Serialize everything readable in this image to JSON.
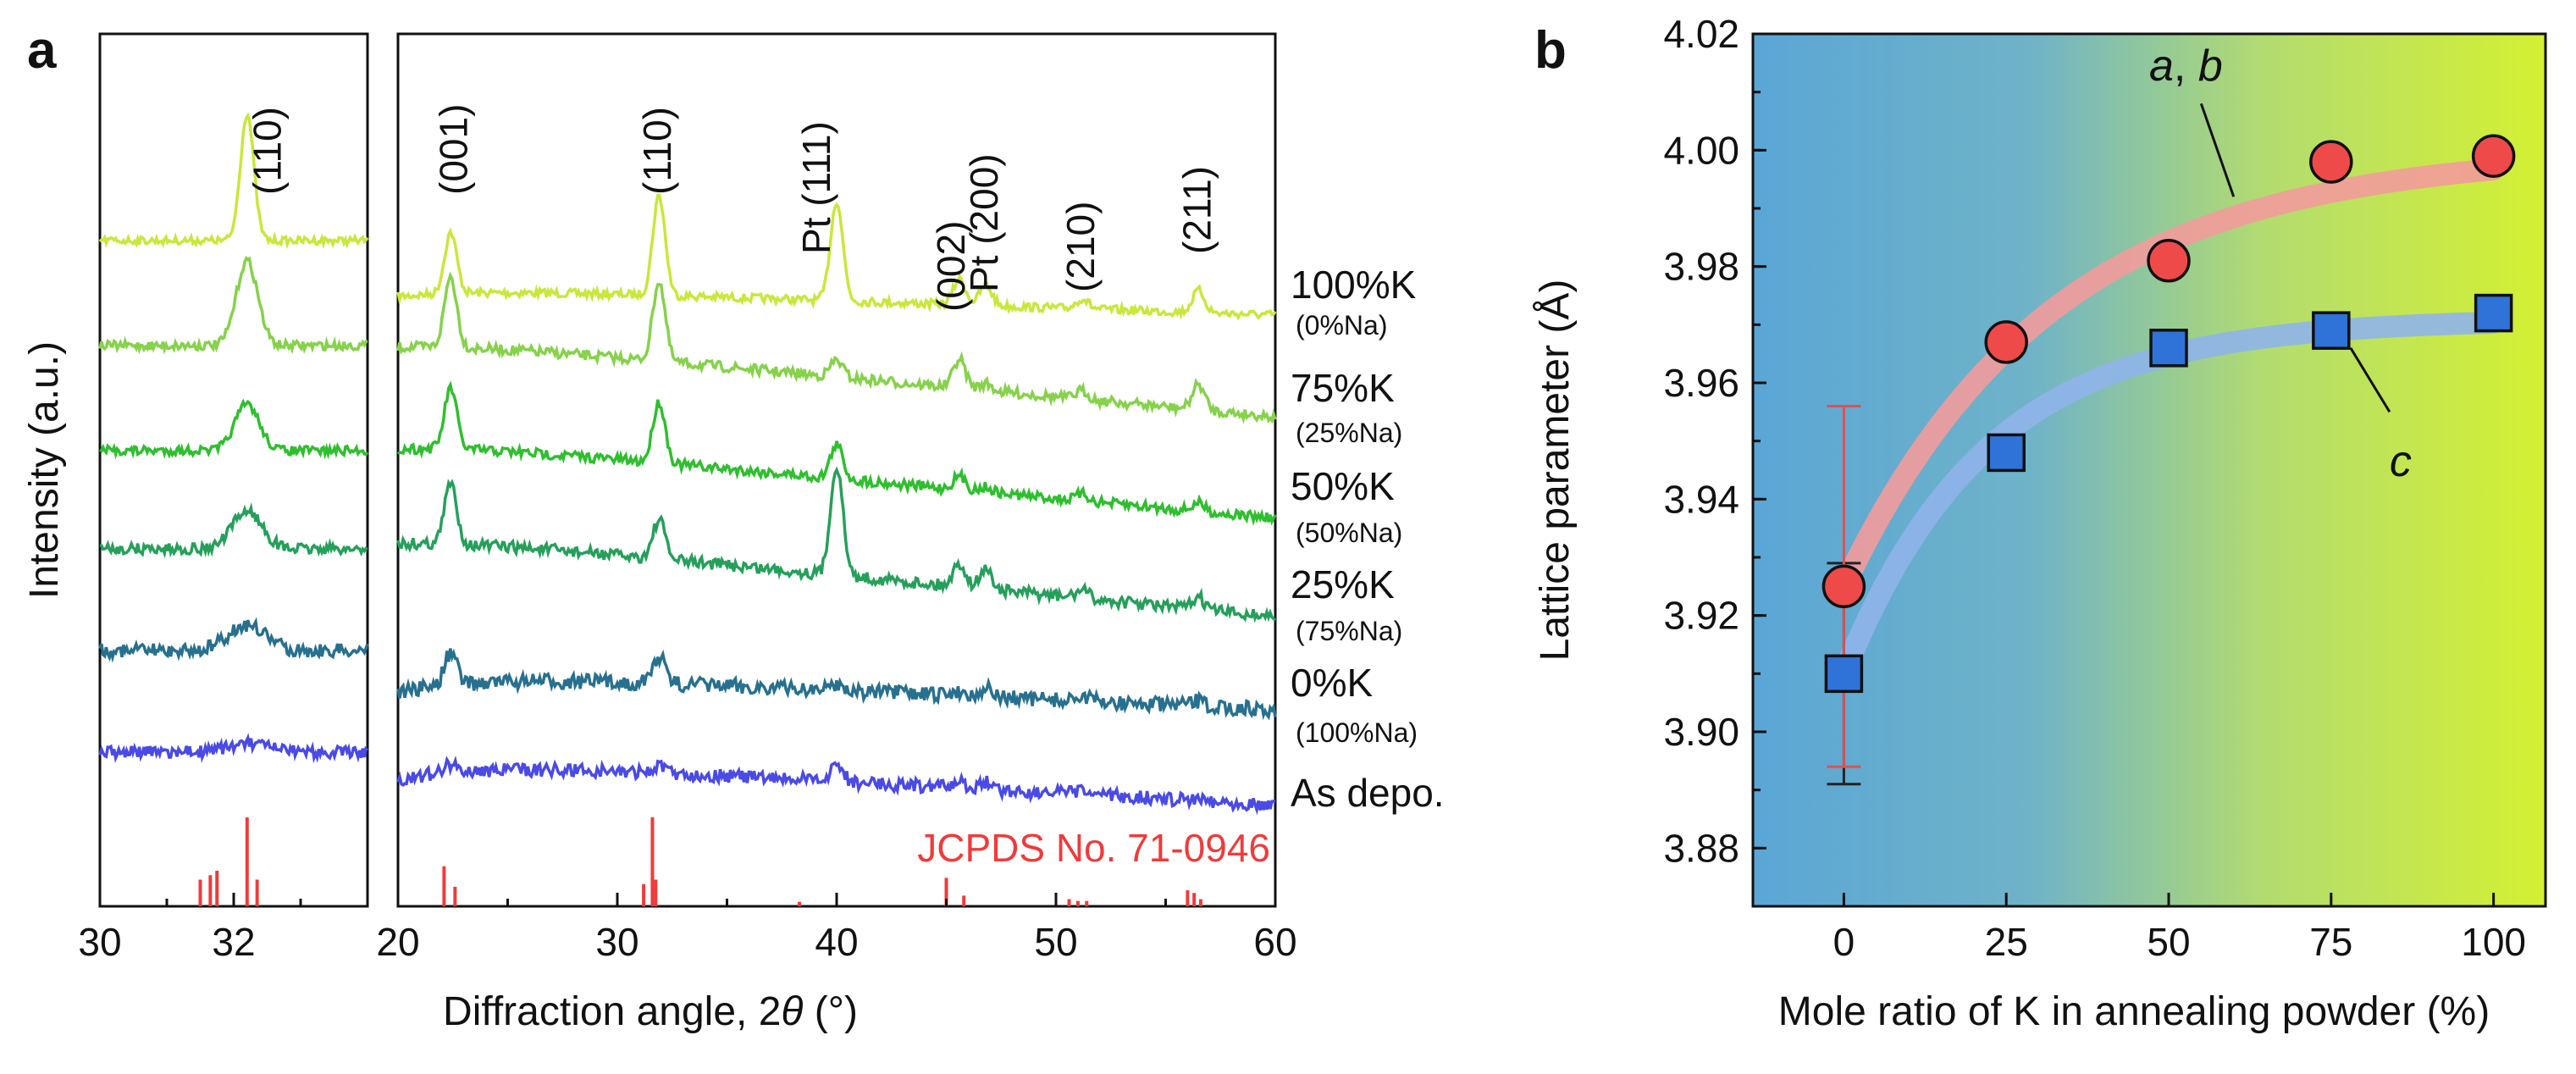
{
  "panel_a": {
    "letter": "a",
    "xlabel_prefix": "Diffraction angle, 2",
    "xlabel_symbol": "θ",
    "xlabel_suffix": " (°)",
    "ylabel": "Intensity (a.u.)",
    "reference_label": "JCPDS No. 71-0946",
    "reference_color": "#ef3b3b",
    "peak_labels_inset": [
      "(110)"
    ],
    "peak_labels_main": [
      "(001)",
      "(110)",
      "Pt (111)",
      "(002)",
      "Pt (200)",
      "(210)",
      "(211)"
    ],
    "samples": [
      {
        "name": "100%K",
        "sub": "(0%Na)",
        "color": "#c8e83a"
      },
      {
        "name": "75%K",
        "sub": "(25%Na)",
        "color": "#86d24a"
      },
      {
        "name": "50%K",
        "sub": "(50%Na)",
        "color": "#2ebf2e"
      },
      {
        "name": "25%K",
        "sub": "(75%Na)",
        "color": "#25a05a"
      },
      {
        "name": "0%K",
        "sub": "(100%Na)",
        "color": "#27708f"
      },
      {
        "name": "As depo.",
        "sub": "",
        "color": "#4a4ae6"
      }
    ]
  },
  "chart_data": [
    {
      "type": "line",
      "panel": "a (inset)",
      "xlim": [
        30,
        34
      ],
      "xticks": [
        "30",
        "32"
      ],
      "peak_positions_2theta": [
        32.2
      ],
      "reference_lines": [
        {
          "x": 31.5,
          "h": 0.3
        },
        {
          "x": 31.65,
          "h": 0.35
        },
        {
          "x": 31.75,
          "h": 0.4
        },
        {
          "x": 32.2,
          "h": 1.0
        },
        {
          "x": 32.35,
          "h": 0.3
        }
      ]
    },
    {
      "type": "line",
      "panel": "a (main)",
      "xlim": [
        20,
        60
      ],
      "xticks": [
        "20",
        "30",
        "40",
        "50",
        "60"
      ],
      "peak_positions_2theta": [
        22.4,
        31.9,
        40.0,
        45.6,
        46.8,
        51.2,
        56.5
      ],
      "reference_lines": [
        {
          "x": 22.1,
          "h": 0.45
        },
        {
          "x": 22.6,
          "h": 0.22
        },
        {
          "x": 31.2,
          "h": 0.25
        },
        {
          "x": 31.6,
          "h": 1.0
        },
        {
          "x": 31.75,
          "h": 0.3
        },
        {
          "x": 38.3,
          "h": 0.05
        },
        {
          "x": 45.0,
          "h": 0.32
        },
        {
          "x": 45.8,
          "h": 0.12
        },
        {
          "x": 50.6,
          "h": 0.08
        },
        {
          "x": 51.0,
          "h": 0.06
        },
        {
          "x": 51.4,
          "h": 0.06
        },
        {
          "x": 56.0,
          "h": 0.18
        },
        {
          "x": 56.3,
          "h": 0.15
        },
        {
          "x": 56.6,
          "h": 0.08
        }
      ]
    },
    {
      "type": "scatter",
      "panel": "b",
      "xlabel": "Mole ratio of K in annealing powder (%)",
      "ylabel": "Lattice parameter (Å)",
      "xlim": [
        -14,
        108
      ],
      "ylim": [
        3.87,
        4.02
      ],
      "xticks": [
        "0",
        "25",
        "50",
        "75",
        "100"
      ],
      "yticks": [
        "3.88",
        "3.90",
        "3.92",
        "3.94",
        "3.96",
        "3.98",
        "4.00",
        "4.02"
      ],
      "series": [
        {
          "name": "a, b",
          "label_italic": "a",
          "label_sep": ", ",
          "label_italic2": "b",
          "marker": "circle",
          "color": "#ef4a4a",
          "x": [
            0,
            25,
            50,
            75,
            100
          ],
          "y": [
            3.925,
            3.967,
            3.981,
            3.998,
            3.999
          ],
          "error": {
            "x": 0,
            "low": 3.894,
            "high": 3.956,
            "color": "#e05050"
          }
        },
        {
          "name": "c",
          "label_italic": "c",
          "marker": "square",
          "color": "#2f72d8",
          "x": [
            0,
            25,
            50,
            75,
            100
          ],
          "y": [
            3.91,
            3.948,
            3.966,
            3.969,
            3.972
          ],
          "error": {
            "x": 0,
            "low": 3.891,
            "high": 3.929,
            "color": "#222222"
          }
        }
      ]
    }
  ],
  "panel_b": {
    "letter": "b",
    "background_left": "#5aa6d6",
    "background_right": "#d4f032"
  }
}
